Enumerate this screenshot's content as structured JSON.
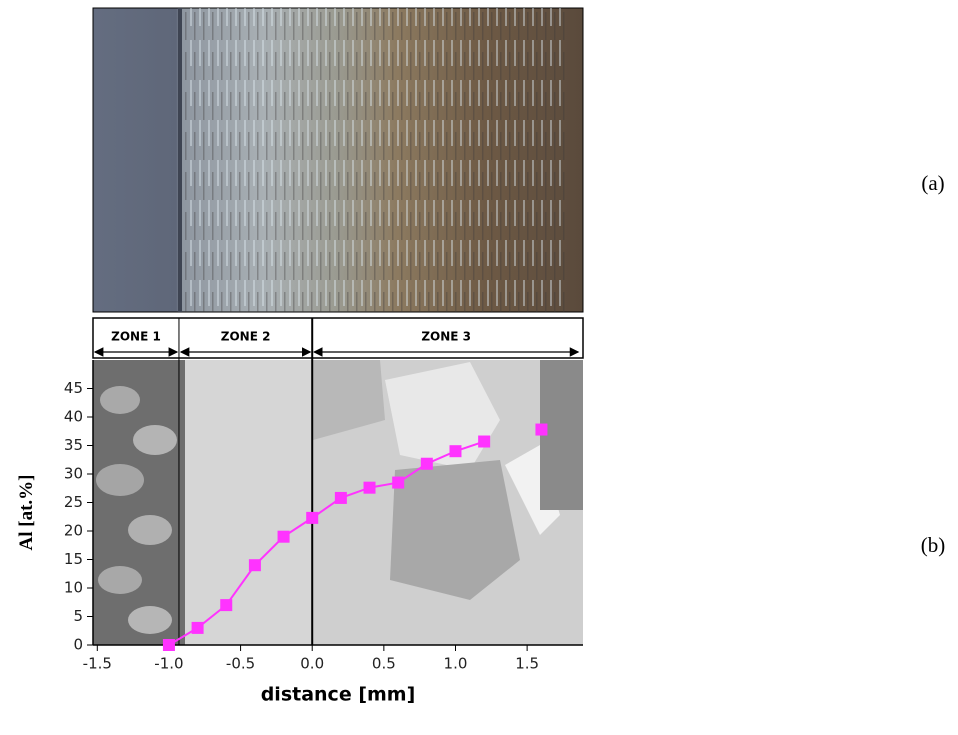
{
  "chart_data": {
    "type": "line",
    "xlabel": "distance [mm]",
    "ylabel": "Al [at.%]",
    "panel_labels": [
      "(a)",
      "(b)"
    ],
    "zones": [
      {
        "label": "ZONE 1",
        "from": -1.53,
        "to": -0.93
      },
      {
        "label": "ZONE 2",
        "from": -0.93,
        "to": 0.0
      },
      {
        "label": "ZONE 3",
        "from": 0.0,
        "to": 1.87
      }
    ],
    "series": [
      {
        "color": "#ff33ff",
        "connected": true,
        "x": [
          -1.0,
          -0.8,
          -0.6,
          -0.4,
          -0.2,
          0.0,
          0.2,
          0.4,
          0.6,
          0.8,
          1.0,
          1.2
        ],
        "values": [
          0,
          3,
          7,
          14,
          19,
          22.3,
          25.8,
          27.6,
          28.5,
          31.8,
          34,
          35.7
        ]
      },
      {
        "color": "#ff33ff",
        "connected": false,
        "x": [
          1.6
        ],
        "values": [
          37.8
        ]
      }
    ],
    "xlim": [
      -1.53,
      1.89
    ],
    "ylim": [
      0,
      50
    ],
    "xticks": [
      -1.5,
      {
        "value": -1.0,
        "label": "-1.0"
      },
      -0.5,
      {
        "value": 0.0,
        "label": "0.0"
      },
      0.5,
      {
        "value": 1.0,
        "label": "1.0"
      },
      1.5
    ],
    "yticks": [
      0,
      5,
      10,
      15,
      20,
      25,
      30,
      35,
      40,
      45
    ]
  }
}
